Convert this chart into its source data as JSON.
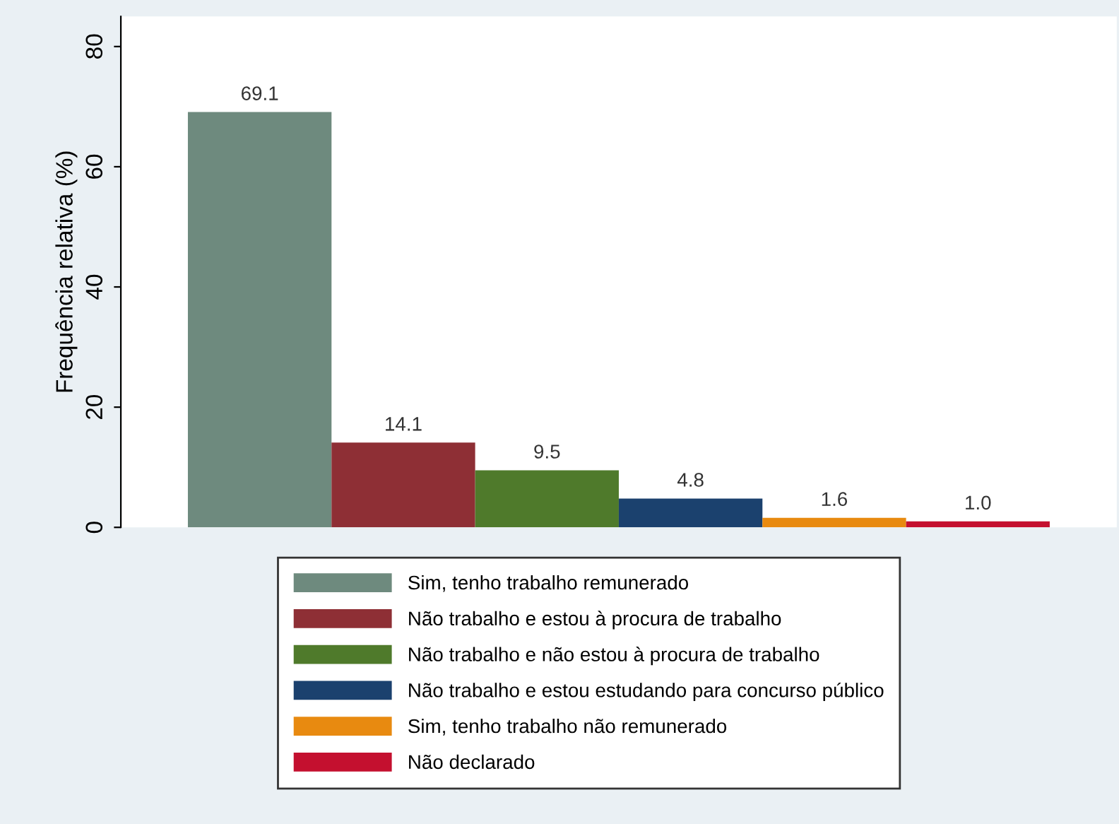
{
  "chart_data": {
    "type": "bar",
    "ylabel": "Frequência relativa (%)",
    "categories": [
      null
    ],
    "series": [
      {
        "name": "Sim, tenho trabalho remunerado",
        "color": "#6e8a7e",
        "values": [
          69.1
        ],
        "value_labels": [
          "69.1"
        ]
      },
      {
        "name": "Não trabalho e estou à procura de trabalho",
        "color": "#8e2f35",
        "values": [
          14.1
        ],
        "value_labels": [
          "14.1"
        ]
      },
      {
        "name": "Não trabalho e não estou à procura de trabalho",
        "color": "#4f7a2b",
        "values": [
          9.5
        ],
        "value_labels": [
          "9.5"
        ]
      },
      {
        "name": "Não trabalho e estou estudando para concurso público",
        "color": "#1b416e",
        "values": [
          4.8
        ],
        "value_labels": [
          "4.8"
        ]
      },
      {
        "name": "Sim, tenho trabalho não remunerado",
        "color": "#e88a10",
        "values": [
          1.6
        ],
        "value_labels": [
          "1.6"
        ]
      },
      {
        "name": "Não declarado",
        "color": "#c4102f",
        "values": [
          1.0
        ],
        "value_labels": [
          "1.0"
        ]
      }
    ],
    "ylim": [
      0,
      85
    ],
    "yticks": [
      0,
      20,
      40,
      60,
      80
    ],
    "grid": false,
    "legend": "bottom"
  }
}
